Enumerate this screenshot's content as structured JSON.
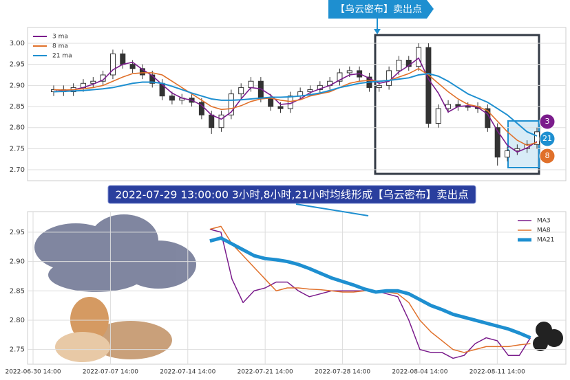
{
  "chart_data": [
    {
      "type": "candlestick",
      "annotation": "【乌云密布】卖出点",
      "legend": "upper left",
      "grid": true,
      "ylim": [
        2.674,
        3.0375
      ],
      "yticks": [
        {
          "value": 3.0,
          "label": "3.00"
        },
        2.95,
        {
          "value": 2.9,
          "label": "2.90"
        },
        2.85,
        {
          "value": 2.8,
          "label": "2.80"
        },
        2.75,
        {
          "value": 2.7,
          "label": "2.70"
        }
      ],
      "open": [
        2.885,
        2.89,
        2.885,
        2.895,
        2.905,
        2.91,
        2.925,
        2.975,
        2.95,
        2.94,
        2.925,
        2.905,
        2.875,
        2.865,
        2.87,
        2.86,
        2.83,
        2.8,
        2.83,
        2.88,
        2.895,
        2.91,
        2.87,
        2.85,
        2.845,
        2.875,
        2.885,
        2.89,
        2.9,
        2.91,
        2.93,
        2.935,
        2.92,
        2.895,
        2.9,
        2.935,
        2.96,
        2.945,
        2.99,
        2.81,
        2.845,
        2.855,
        2.85,
        2.85,
        2.845,
        2.8,
        2.73,
        2.745,
        2.75,
        2.76
      ],
      "high": [
        2.9,
        2.9,
        2.905,
        2.915,
        2.92,
        2.935,
        2.985,
        2.985,
        2.96,
        2.95,
        2.935,
        2.915,
        2.885,
        2.88,
        2.88,
        2.87,
        2.84,
        2.84,
        2.89,
        2.905,
        2.92,
        2.92,
        2.88,
        2.86,
        2.885,
        2.895,
        2.9,
        2.91,
        2.92,
        2.94,
        2.945,
        2.945,
        2.93,
        2.91,
        2.945,
        2.97,
        2.97,
        3.0,
        3.0,
        2.855,
        2.865,
        2.865,
        2.86,
        2.86,
        2.855,
        2.81,
        2.755,
        2.76,
        2.77,
        2.8
      ],
      "low": [
        2.875,
        2.875,
        2.875,
        2.885,
        2.895,
        2.9,
        2.915,
        2.94,
        2.93,
        2.915,
        2.895,
        2.865,
        2.855,
        2.855,
        2.85,
        2.82,
        2.785,
        2.79,
        2.82,
        2.87,
        2.885,
        2.86,
        2.84,
        2.835,
        2.835,
        2.865,
        2.875,
        2.88,
        2.89,
        2.9,
        2.92,
        2.91,
        2.885,
        2.885,
        2.89,
        2.925,
        2.935,
        2.935,
        2.8,
        2.8,
        2.835,
        2.84,
        2.84,
        2.835,
        2.79,
        2.71,
        2.72,
        2.735,
        2.74,
        2.75
      ],
      "close": [
        2.89,
        2.885,
        2.895,
        2.905,
        2.91,
        2.925,
        2.975,
        2.95,
        2.94,
        2.925,
        2.905,
        2.875,
        2.865,
        2.87,
        2.86,
        2.83,
        2.8,
        2.83,
        2.88,
        2.895,
        2.91,
        2.87,
        2.85,
        2.845,
        2.875,
        2.885,
        2.89,
        2.9,
        2.91,
        2.93,
        2.935,
        2.92,
        2.895,
        2.9,
        2.935,
        2.96,
        2.945,
        2.99,
        2.81,
        2.845,
        2.855,
        2.85,
        2.85,
        2.845,
        2.8,
        2.73,
        2.745,
        2.75,
        2.76,
        2.79
      ],
      "series": [
        {
          "name": "3 ma",
          "color": "#7b1c8c",
          "values": [
            2.89,
            2.888,
            2.89,
            2.895,
            2.903,
            2.913,
            2.937,
            2.95,
            2.955,
            2.938,
            2.923,
            2.902,
            2.882,
            2.87,
            2.865,
            2.853,
            2.83,
            2.82,
            2.837,
            2.868,
            2.895,
            2.892,
            2.877,
            2.855,
            2.857,
            2.868,
            2.883,
            2.892,
            2.9,
            2.913,
            2.925,
            2.928,
            2.917,
            2.905,
            2.91,
            2.932,
            2.947,
            2.965,
            2.915,
            2.882,
            2.837,
            2.85,
            2.852,
            2.848,
            2.832,
            2.792,
            2.758,
            2.742,
            2.752,
            2.767
          ]
        },
        {
          "name": "8 ma",
          "color": "#e0702a",
          "values": [
            2.89,
            2.889,
            2.89,
            2.892,
            2.895,
            2.9,
            2.91,
            2.92,
            2.928,
            2.93,
            2.93,
            2.925,
            2.91,
            2.895,
            2.88,
            2.865,
            2.85,
            2.843,
            2.845,
            2.852,
            2.862,
            2.868,
            2.87,
            2.865,
            2.862,
            2.866,
            2.875,
            2.88,
            2.885,
            2.895,
            2.905,
            2.91,
            2.912,
            2.91,
            2.912,
            2.92,
            2.928,
            2.94,
            2.925,
            2.905,
            2.885,
            2.868,
            2.855,
            2.85,
            2.84,
            2.815,
            2.79,
            2.77,
            2.758,
            2.765
          ]
        },
        {
          "name": "21 ma",
          "color": "#1e8fd0",
          "values": [
            2.885,
            2.886,
            2.887,
            2.888,
            2.89,
            2.892,
            2.895,
            2.9,
            2.905,
            2.908,
            2.908,
            2.905,
            2.898,
            2.89,
            2.882,
            2.875,
            2.868,
            2.865,
            2.865,
            2.866,
            2.868,
            2.87,
            2.872,
            2.872,
            2.873,
            2.875,
            2.878,
            2.882,
            2.888,
            2.895,
            2.9,
            2.905,
            2.908,
            2.91,
            2.912,
            2.915,
            2.918,
            2.925,
            2.928,
            2.922,
            2.91,
            2.895,
            2.88,
            2.87,
            2.86,
            2.845,
            2.83,
            2.81,
            2.79,
            2.78
          ]
        }
      ],
      "badges": [
        {
          "text": "3",
          "color": "#7b1c8c"
        },
        {
          "text": "21",
          "color": "#1e8fd0"
        },
        {
          "text": "8",
          "color": "#e0702a"
        }
      ]
    },
    {
      "type": "line",
      "annotation": "2022-07-29 13:00:00 3小时,8小时,21小时均线形成【乌云密布】卖出点",
      "legend": "upper right",
      "grid": true,
      "xlim": [
        "2022-06-30 02:00",
        "2022-08-17 19:00"
      ],
      "xticks": [
        "2022-06-30 14:00",
        "2022-07-07 14:00",
        "2022-07-14 14:00",
        "2022-07-21 14:00",
        "2022-07-28 14:00",
        "2022-08-04 14:00",
        "2022-08-11 14:00"
      ],
      "ylim": [
        2.725,
        2.985
      ],
      "yticks": [
        2.95,
        {
          "value": 2.9,
          "label": "2.90"
        },
        2.85,
        {
          "value": 2.8,
          "label": "2.80"
        },
        2.75
      ],
      "x": [
        "2022-07-16 14:00",
        "2022-07-17 14:00",
        "2022-07-18 14:00",
        "2022-07-19 14:00",
        "2022-07-20 14:00",
        "2022-07-21 14:00",
        "2022-07-22 14:00",
        "2022-07-23 14:00",
        "2022-07-24 14:00",
        "2022-07-25 14:00",
        "2022-07-26 14:00",
        "2022-07-27 14:00",
        "2022-07-28 14:00",
        "2022-07-29 14:00",
        "2022-07-30 14:00",
        "2022-07-31 14:00",
        "2022-08-01 14:00",
        "2022-08-02 14:00",
        "2022-08-03 14:00",
        "2022-08-04 14:00",
        "2022-08-05 14:00",
        "2022-08-06 14:00",
        "2022-08-07 14:00",
        "2022-08-08 14:00",
        "2022-08-09 14:00",
        "2022-08-10 14:00",
        "2022-08-11 14:00",
        "2022-08-12 14:00",
        "2022-08-13 14:00",
        "2022-08-14 14:00"
      ],
      "series": [
        {
          "name": "MA3",
          "color": "#7b1c8c",
          "width": 1.5,
          "values": [
            2.955,
            2.95,
            2.87,
            2.83,
            2.85,
            2.855,
            2.865,
            2.865,
            2.85,
            2.84,
            2.845,
            2.85,
            2.85,
            2.85,
            2.85,
            2.85,
            2.845,
            2.84,
            2.8,
            2.75,
            2.745,
            2.745,
            2.735,
            2.74,
            2.76,
            2.77,
            2.765,
            2.74,
            2.74,
            2.77
          ]
        },
        {
          "name": "MA8",
          "color": "#e0702a",
          "width": 1.5,
          "values": [
            2.955,
            2.96,
            2.93,
            2.91,
            2.89,
            2.87,
            2.85,
            2.855,
            2.855,
            2.853,
            2.852,
            2.85,
            2.848,
            2.848,
            2.85,
            2.85,
            2.848,
            2.845,
            2.83,
            2.8,
            2.78,
            2.765,
            2.75,
            2.745,
            2.75,
            2.755,
            2.755,
            2.755,
            2.758,
            2.76
          ]
        },
        {
          "name": "MA21",
          "color": "#1e8fd0",
          "width": 5,
          "values": [
            2.935,
            2.94,
            2.93,
            2.92,
            2.91,
            2.905,
            2.903,
            2.9,
            2.895,
            2.888,
            2.88,
            2.872,
            2.866,
            2.86,
            2.853,
            2.848,
            2.85,
            2.85,
            2.845,
            2.835,
            2.825,
            2.818,
            2.81,
            2.805,
            2.8,
            2.795,
            2.79,
            2.785,
            2.778,
            2.77
          ]
        }
      ]
    }
  ]
}
